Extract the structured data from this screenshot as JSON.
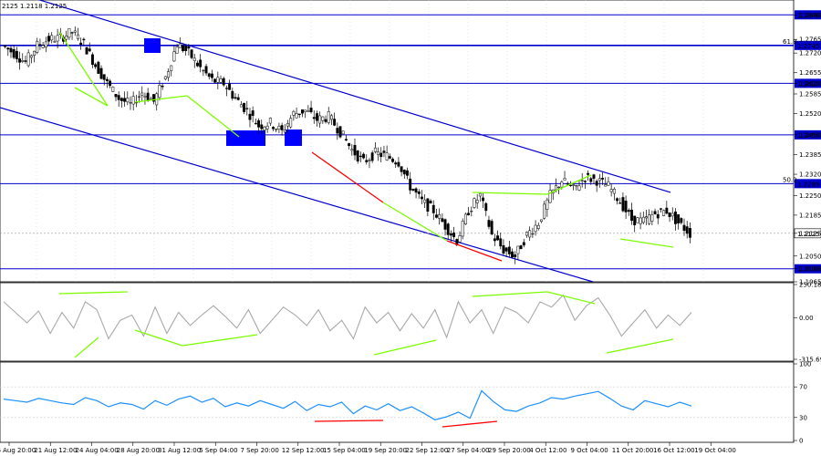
{
  "header": {
    "ohlc": "2125 1.2118 1.2125"
  },
  "colors": {
    "candle": "#000000",
    "level_line": "#0000cc",
    "channel": "#0000cc",
    "bullish": "#7cfc00",
    "bearish": "#ff0000",
    "cci": "#a9a9a9",
    "rsi": "#1e90ff",
    "price_label_bg": "#0000cc",
    "current_label_bg": "#ffffff",
    "grid": "#cfcfcf",
    "marker": "#0000ff"
  },
  "chart_data": [
    {
      "type": "line",
      "panel": "price",
      "ylim": [
        1.1965,
        1.2895
      ],
      "grid": true,
      "y_ticks": [
        "1.2846",
        "1.2765",
        "1.2720",
        "1.2655",
        "1.2620",
        "1.2585",
        "1.2520",
        "1.2450",
        "1.2385",
        "1.2320",
        "1.2250",
        "1.2185",
        "1.2125",
        "1.2050",
        "1.2008",
        "1.1965"
      ],
      "x_ticks": [
        "16 Aug 20:00",
        "21 Aug 12:00",
        "24 Aug 04:00",
        "28 Aug 20:00",
        "31 Aug 12:00",
        "5 Sep 04:00",
        "7 Sep 20:00",
        "12 Sep 12:00",
        "15 Sep 04:00",
        "19 Sep 20:00",
        "22 Sep 12:00",
        "27 Sep 04:00",
        "29 Sep 20:00",
        "4 Oct 12:00",
        "9 Oct 04:00",
        "11 Oct 20:00",
        "16 Oct 12:00",
        "19 Oct 04:00"
      ],
      "price_series": [
        1.2745,
        1.272,
        1.269,
        1.2745,
        1.2765,
        1.277,
        1.279,
        1.275,
        1.268,
        1.262,
        1.257,
        1.255,
        1.259,
        1.256,
        1.264,
        1.275,
        1.272,
        1.267,
        1.263,
        1.262,
        1.257,
        1.253,
        1.248,
        1.249,
        1.246,
        1.252,
        1.253,
        1.25,
        1.251,
        1.246,
        1.24,
        1.236,
        1.239,
        1.238,
        1.236,
        1.228,
        1.223,
        1.22,
        1.215,
        1.21,
        1.22,
        1.225,
        1.212,
        1.207,
        1.205,
        1.212,
        1.216,
        1.225,
        1.23,
        1.227,
        1.231,
        1.23,
        1.228,
        1.223,
        1.217,
        1.2165,
        1.219,
        1.22,
        1.216,
        1.2125
      ],
      "levels": [
        {
          "value": 1.2846,
          "label": "1.2846",
          "fib": ""
        },
        {
          "value": 1.2745,
          "label": "1.2745",
          "fib": "61.8"
        },
        {
          "value": 1.262,
          "label": "1.2620",
          "fib": ""
        },
        {
          "value": 1.245,
          "label": "1.2450",
          "fib": ""
        },
        {
          "value": 1.2289,
          "label": "1.2289",
          "fib": "50.0"
        },
        {
          "value": 1.2008,
          "label": "1.2008",
          "fib": ""
        }
      ],
      "current_price": {
        "value": 1.2125,
        "label": "1.2125"
      }
    },
    {
      "type": "line",
      "panel": "cci",
      "ylim": [
        -315.698,
        250.1868
      ],
      "y_ticks": [
        "250.1868",
        "0.00",
        "-315.698"
      ],
      "values": [
        120,
        40,
        -40,
        50,
        -120,
        40,
        -80,
        120,
        60,
        -160,
        -20,
        20,
        -140,
        80,
        -120,
        40,
        -60,
        20,
        90,
        10,
        -80,
        60,
        -120,
        -20,
        80,
        20,
        -60,
        60,
        -100,
        -20,
        -160,
        80,
        -40,
        40,
        -100,
        30,
        -80,
        60,
        -150,
        120,
        -40,
        60,
        -120,
        80,
        40,
        -40,
        120,
        80,
        170,
        -20,
        90,
        150,
        20,
        -140,
        -40,
        60,
        -80,
        20,
        -60,
        40
      ]
    },
    {
      "type": "line",
      "panel": "rsi",
      "ylim": [
        0,
        100
      ],
      "y_ticks": [
        "100",
        "70",
        "30",
        "0"
      ],
      "values": [
        54,
        52,
        50,
        55,
        52,
        49,
        47,
        56,
        52,
        44,
        49,
        47,
        41,
        52,
        46,
        54,
        58,
        50,
        55,
        44,
        49,
        45,
        52,
        47,
        42,
        51,
        39,
        47,
        44,
        50,
        35,
        45,
        40,
        48,
        39,
        44,
        36,
        27,
        31,
        37,
        29,
        65,
        51,
        40,
        38,
        45,
        49,
        56,
        54,
        58,
        61,
        64,
        55,
        45,
        40,
        52,
        48,
        44,
        50,
        45
      ]
    }
  ]
}
